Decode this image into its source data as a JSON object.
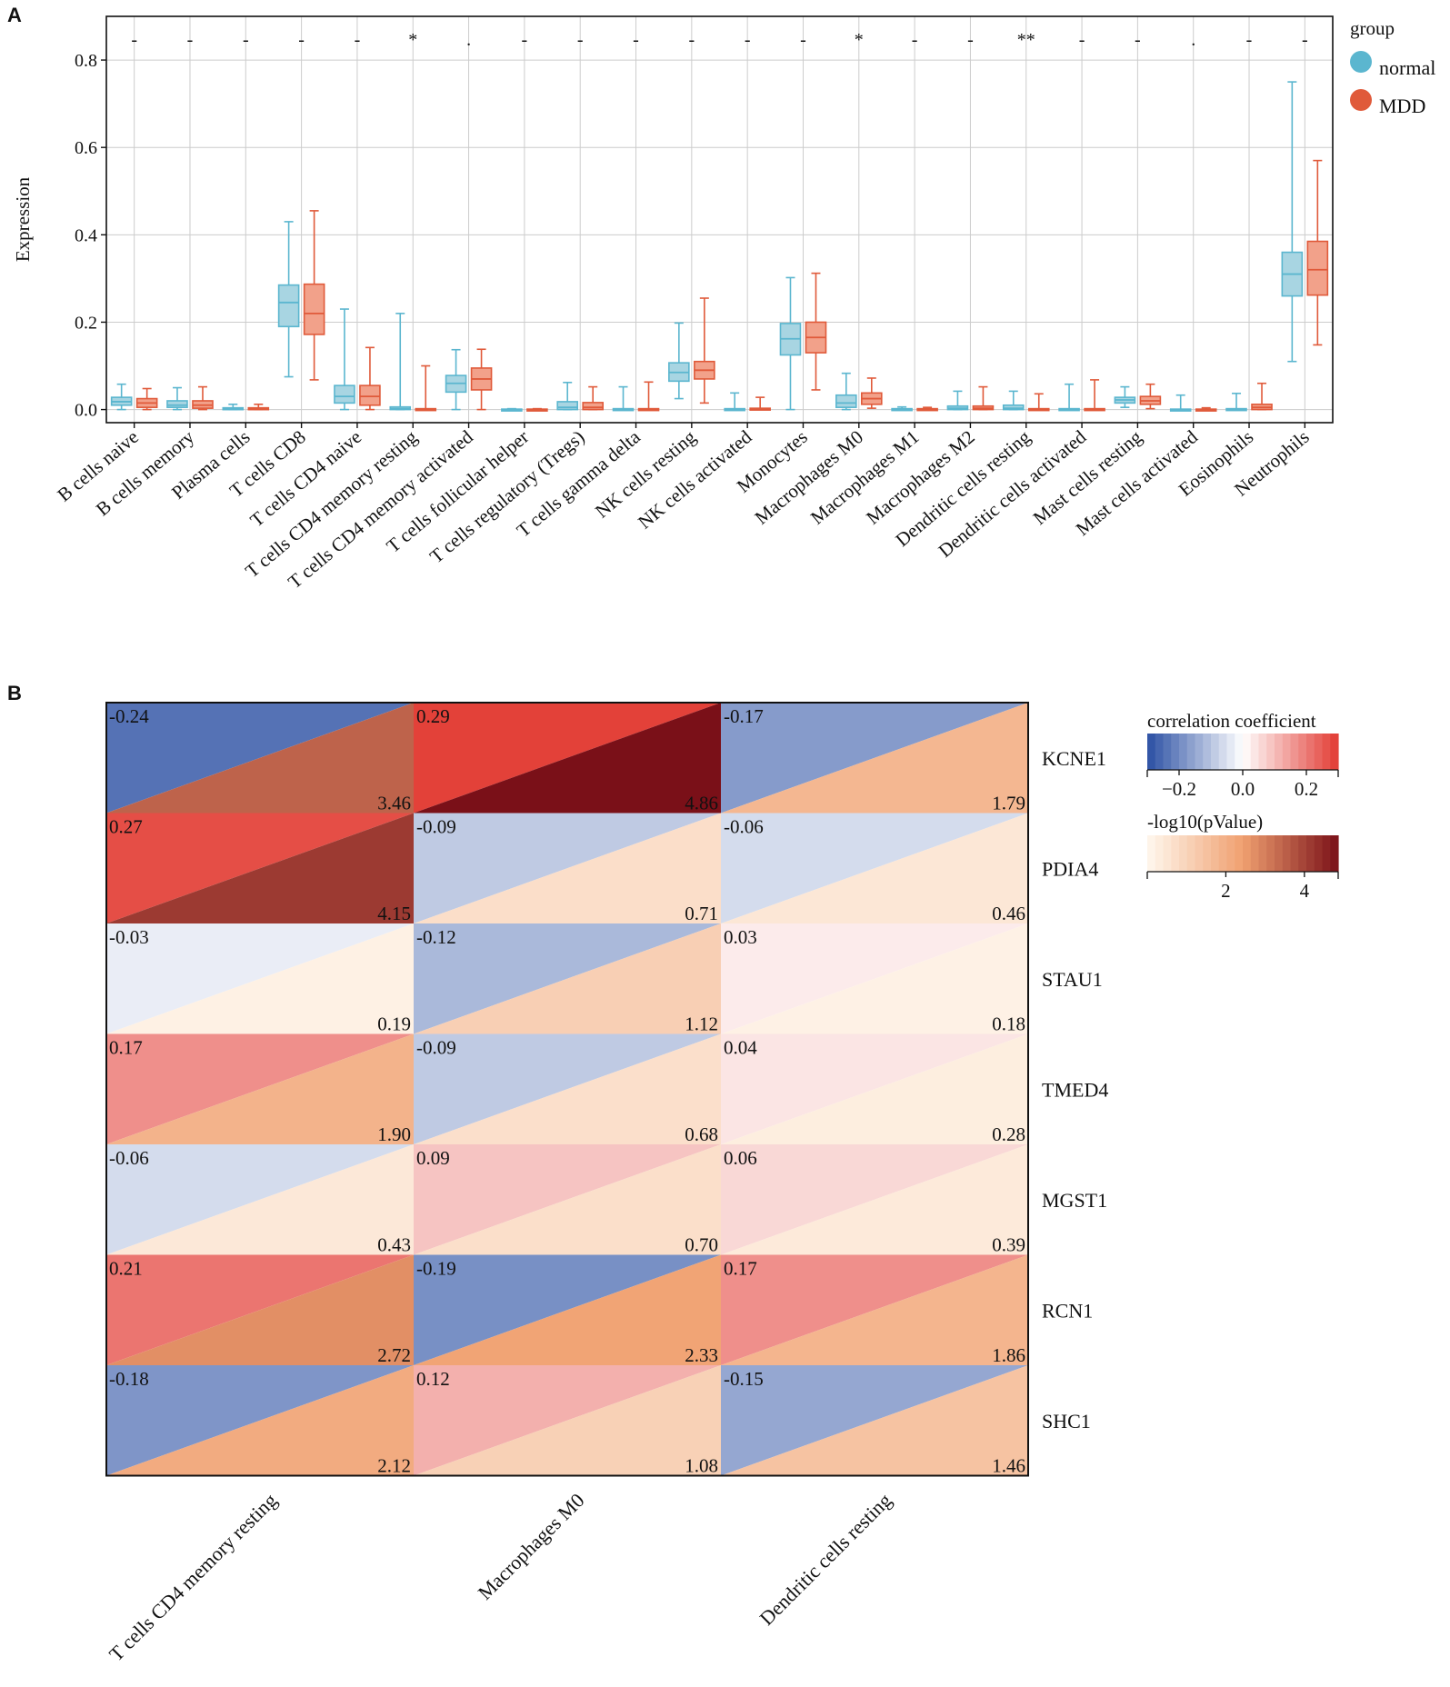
{
  "panel_a_label": "A",
  "panel_b_label": "B",
  "chart_data": [
    {
      "type": "box",
      "ylabel": "Expression",
      "ylim": [
        -0.03,
        0.9
      ],
      "yticks": [
        0.0,
        0.2,
        0.4,
        0.6,
        0.8
      ],
      "ytick_labels": [
        "0.0",
        "0.2",
        "0.4",
        "0.6",
        "0.8"
      ],
      "legend": {
        "title": "group",
        "position": "right",
        "entries": [
          {
            "name": "normal",
            "color": "#5bb6cf",
            "fill": "#a8d5e2"
          },
          {
            "name": "MDD",
            "color": "#e05a3a",
            "fill": "#f2a18a"
          }
        ]
      },
      "categories": [
        "B cells naive",
        "B cells memory",
        "Plasma cells",
        "T cells CD8",
        "T cells CD4 naive",
        "T cells CD4 memory resting",
        "T cells CD4 memory activated",
        "T cells follicular helper",
        "T cells regulatory (Tregs)",
        "T cells gamma delta",
        "NK cells resting",
        "NK cells activated",
        "Monocytes",
        "Macrophages M0",
        "Macrophages M1",
        "Macrophages M2",
        "Dendritic cells resting",
        "Dendritic cells activated",
        "Mast cells resting",
        "Mast cells activated",
        "Eosinophils",
        "Neutrophils"
      ],
      "significance": [
        "-",
        "-",
        "-",
        "-",
        "-",
        "*",
        ".",
        "-",
        "-",
        "-",
        "-",
        "-",
        "-",
        "*",
        "-",
        "-",
        "**",
        "-",
        "-",
        ".",
        "-",
        "-"
      ],
      "series": [
        {
          "name": "normal",
          "stats": [
            [
              0.0,
              0.01,
              0.018,
              0.028,
              0.058
            ],
            [
              0.0,
              0.005,
              0.01,
              0.02,
              0.05
            ],
            [
              0.0,
              0.0,
              0.002,
              0.004,
              0.012
            ],
            [
              0.075,
              0.19,
              0.245,
              0.285,
              0.43
            ],
            [
              0.0,
              0.015,
              0.03,
              0.055,
              0.23
            ],
            [
              0.0,
              0.0,
              0.002,
              0.006,
              0.22
            ],
            [
              0.0,
              0.04,
              0.06,
              0.078,
              0.137
            ],
            [
              0.0,
              0.0,
              0.0,
              0.001,
              0.002
            ],
            [
              0.0,
              0.0,
              0.005,
              0.018,
              0.062
            ],
            [
              0.0,
              0.0,
              0.0,
              0.002,
              0.052
            ],
            [
              0.025,
              0.065,
              0.085,
              0.107,
              0.198
            ],
            [
              0.0,
              0.0,
              0.0,
              0.002,
              0.038
            ],
            [
              0.0,
              0.125,
              0.162,
              0.197,
              0.302
            ],
            [
              0.0,
              0.005,
              0.015,
              0.033,
              0.083
            ],
            [
              0.0,
              0.0,
              0.001,
              0.002,
              0.006
            ],
            [
              0.0,
              0.0,
              0.003,
              0.008,
              0.042
            ],
            [
              0.0,
              0.0,
              0.003,
              0.01,
              0.042
            ],
            [
              0.0,
              0.0,
              0.0,
              0.002,
              0.058
            ],
            [
              0.005,
              0.015,
              0.022,
              0.028,
              0.052
            ],
            [
              0.0,
              0.0,
              0.0,
              0.001,
              0.033
            ],
            [
              0.0,
              0.0,
              0.0,
              0.002,
              0.037
            ],
            [
              0.11,
              0.26,
              0.31,
              0.36,
              0.75
            ]
          ]
        },
        {
          "name": "MDD",
          "stats": [
            [
              0.0,
              0.005,
              0.015,
              0.025,
              0.048
            ],
            [
              0.0,
              0.003,
              0.01,
              0.02,
              0.052
            ],
            [
              0.0,
              0.0,
              0.002,
              0.004,
              0.012
            ],
            [
              0.068,
              0.172,
              0.22,
              0.287,
              0.455
            ],
            [
              0.0,
              0.01,
              0.03,
              0.055,
              0.142
            ],
            [
              0.0,
              0.0,
              0.0,
              0.002,
              0.1
            ],
            [
              0.0,
              0.045,
              0.07,
              0.095,
              0.138
            ],
            [
              0.0,
              0.0,
              0.0,
              0.001,
              0.002
            ],
            [
              0.0,
              0.0,
              0.005,
              0.016,
              0.052
            ],
            [
              0.0,
              0.0,
              0.0,
              0.002,
              0.063
            ],
            [
              0.015,
              0.07,
              0.09,
              0.11,
              0.255
            ],
            [
              0.0,
              0.0,
              0.0,
              0.003,
              0.028
            ],
            [
              0.045,
              0.13,
              0.165,
              0.2,
              0.312
            ],
            [
              0.003,
              0.012,
              0.025,
              0.038,
              0.072
            ],
            [
              0.0,
              0.0,
              0.001,
              0.002,
              0.005
            ],
            [
              0.0,
              0.0,
              0.003,
              0.008,
              0.052
            ],
            [
              0.0,
              0.0,
              0.0,
              0.002,
              0.036
            ],
            [
              0.0,
              0.0,
              0.0,
              0.002,
              0.068
            ],
            [
              0.002,
              0.012,
              0.02,
              0.03,
              0.058
            ],
            [
              0.0,
              0.0,
              0.0,
              0.001,
              0.004
            ],
            [
              0.0,
              0.0,
              0.005,
              0.012,
              0.06
            ],
            [
              0.148,
              0.262,
              0.32,
              0.385,
              0.57
            ]
          ]
        }
      ]
    },
    {
      "type": "heatmap",
      "columns": [
        "T cells CD4 memory resting",
        "Macrophages M0",
        "Dendritic cells resting"
      ],
      "rows": [
        "KCNE1",
        "PDIA4",
        "STAU1",
        "TMED4",
        "MGST1",
        "RCN1",
        "SHC1"
      ],
      "correlation": [
        [
          -0.24,
          0.29,
          -0.17
        ],
        [
          0.27,
          -0.09,
          -0.06
        ],
        [
          -0.03,
          -0.12,
          0.03
        ],
        [
          0.17,
          -0.09,
          0.04
        ],
        [
          -0.06,
          0.09,
          0.06
        ],
        [
          0.21,
          -0.19,
          0.17
        ],
        [
          -0.18,
          0.12,
          -0.15
        ]
      ],
      "correlation_labels": [
        [
          "-0.24",
          "0.29",
          "-0.17"
        ],
        [
          "0.27",
          "-0.09",
          "-0.06"
        ],
        [
          "-0.03",
          "-0.12",
          "0.03"
        ],
        [
          "0.17",
          "-0.09",
          "0.04"
        ],
        [
          "-0.06",
          "0.09",
          "0.06"
        ],
        [
          "0.21",
          "-0.19",
          "0.17"
        ],
        [
          "-0.18",
          "0.12",
          "-0.15"
        ]
      ],
      "neg_log10_p": [
        [
          3.46,
          4.86,
          1.79
        ],
        [
          4.15,
          0.71,
          0.46
        ],
        [
          0.19,
          1.12,
          0.18
        ],
        [
          1.9,
          0.68,
          0.28
        ],
        [
          0.43,
          0.7,
          0.39
        ],
        [
          2.72,
          2.33,
          1.86
        ],
        [
          2.12,
          1.08,
          1.46
        ]
      ],
      "neg_log10_p_labels": [
        [
          "3.46",
          "4.86",
          "1.79"
        ],
        [
          "4.15",
          "0.71",
          "0.46"
        ],
        [
          "0.19",
          "1.12",
          "0.18"
        ],
        [
          "1.90",
          "0.68",
          "0.28"
        ],
        [
          "0.43",
          "0.70",
          "0.39"
        ],
        [
          "2.72",
          "2.33",
          "1.86"
        ],
        [
          "2.12",
          "1.08",
          "1.46"
        ]
      ],
      "legend_correlation": {
        "title": "correlation coefficient",
        "range": [
          -0.3,
          0.3
        ],
        "ticks": [
          -0.2,
          0.0,
          0.2
        ],
        "tick_labels": [
          "−0.2",
          "0.0",
          "0.2"
        ],
        "colors": {
          "neg": "#2a4fa3",
          "mid": "#ffffff",
          "pos": "#e23a32"
        }
      },
      "legend_pvalue": {
        "title": "-log10(pValue)",
        "range": [
          0,
          4.86
        ],
        "ticks": [
          2,
          4
        ],
        "tick_labels": [
          "2",
          "4"
        ],
        "colors": {
          "low": "#fff8ee",
          "mid": "#f0a070",
          "high": "#7a1018"
        }
      }
    }
  ]
}
